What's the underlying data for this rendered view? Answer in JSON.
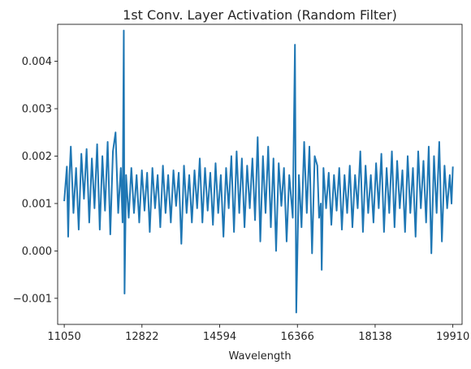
{
  "chart_data": {
    "type": "line",
    "title": "1st Conv. Layer Activation (Random Filter)",
    "xlabel": "Wavelength",
    "ylabel": "",
    "xlim": [
      10900,
      20120
    ],
    "ylim": [
      -0.00155,
      0.00478
    ],
    "x_ticks": [
      11050,
      12822,
      14594,
      16366,
      18138,
      19910
    ],
    "y_ticks": [
      -0.001,
      0.0,
      0.001,
      0.002,
      0.003,
      0.004
    ],
    "y_tick_labels": [
      "−0.001",
      "0.000",
      "0.001",
      "0.002",
      "0.003",
      "0.004"
    ],
    "grid": false,
    "series": [
      {
        "color": "#1f77b4",
        "x_start": 11050,
        "x_end": 19910,
        "points": [
          [
            11050,
            0.00105
          ],
          [
            11110,
            0.00178
          ],
          [
            11140,
            0.0003
          ],
          [
            11170,
            0.0016
          ],
          [
            11200,
            0.0022
          ],
          [
            11260,
            0.0008
          ],
          [
            11320,
            0.00175
          ],
          [
            11380,
            0.00045
          ],
          [
            11440,
            0.00205
          ],
          [
            11500,
            0.0011
          ],
          [
            11560,
            0.00215
          ],
          [
            11620,
            0.0006
          ],
          [
            11680,
            0.00195
          ],
          [
            11740,
            0.0009
          ],
          [
            11800,
            0.00225
          ],
          [
            11860,
            0.00045
          ],
          [
            11920,
            0.002
          ],
          [
            11980,
            0.00085
          ],
          [
            12040,
            0.0023
          ],
          [
            12100,
            0.00035
          ],
          [
            12160,
            0.0021
          ],
          [
            12220,
            0.0025
          ],
          [
            12280,
            0.0008
          ],
          [
            12340,
            0.00175
          ],
          [
            12380,
            0.0006
          ],
          [
            12408,
            0.00465
          ],
          [
            12425,
            -0.0009
          ],
          [
            12460,
            0.0016
          ],
          [
            12520,
            0.0007
          ],
          [
            12580,
            0.00175
          ],
          [
            12640,
            0.0008
          ],
          [
            12700,
            0.0016
          ],
          [
            12760,
            0.0006
          ],
          [
            12820,
            0.0017
          ],
          [
            12880,
            0.00085
          ],
          [
            12940,
            0.00165
          ],
          [
            13000,
            0.0004
          ],
          [
            13060,
            0.00175
          ],
          [
            13120,
            0.0009
          ],
          [
            13180,
            0.0016
          ],
          [
            13240,
            0.0005
          ],
          [
            13300,
            0.0018
          ],
          [
            13360,
            0.0008
          ],
          [
            13420,
            0.0016
          ],
          [
            13480,
            0.0006
          ],
          [
            13540,
            0.0017
          ],
          [
            13600,
            0.00095
          ],
          [
            13660,
            0.00165
          ],
          [
            13720,
            0.00015
          ],
          [
            13780,
            0.0018
          ],
          [
            13840,
            0.0008
          ],
          [
            13900,
            0.0016
          ],
          [
            13960,
            0.0006
          ],
          [
            14020,
            0.0017
          ],
          [
            14080,
            0.0009
          ],
          [
            14140,
            0.00195
          ],
          [
            14200,
            0.0006
          ],
          [
            14260,
            0.00175
          ],
          [
            14320,
            0.00085
          ],
          [
            14380,
            0.00165
          ],
          [
            14440,
            0.00055
          ],
          [
            14500,
            0.00185
          ],
          [
            14560,
            0.0008
          ],
          [
            14620,
            0.0016
          ],
          [
            14680,
            0.0003
          ],
          [
            14740,
            0.00175
          ],
          [
            14800,
            0.0009
          ],
          [
            14860,
            0.002
          ],
          [
            14920,
            0.0004
          ],
          [
            14980,
            0.0021
          ],
          [
            15040,
            0.0008
          ],
          [
            15100,
            0.00195
          ],
          [
            15160,
            0.0005
          ],
          [
            15220,
            0.0018
          ],
          [
            15280,
            0.0009
          ],
          [
            15340,
            0.00195
          ],
          [
            15400,
            0.00065
          ],
          [
            15460,
            0.0024
          ],
          [
            15520,
            0.0002
          ],
          [
            15580,
            0.002
          ],
          [
            15640,
            0.0008
          ],
          [
            15700,
            0.0022
          ],
          [
            15760,
            0.0005
          ],
          [
            15820,
            0.00195
          ],
          [
            15880,
            0.0
          ],
          [
            15940,
            0.00185
          ],
          [
            16000,
            0.00095
          ],
          [
            16060,
            0.00175
          ],
          [
            16120,
            0.0002
          ],
          [
            16180,
            0.0016
          ],
          [
            16260,
            0.0007
          ],
          [
            16310,
            0.00435
          ],
          [
            16340,
            -0.0013
          ],
          [
            16400,
            0.0016
          ],
          [
            16460,
            0.0005
          ],
          [
            16520,
            0.0023
          ],
          [
            16580,
            0.0008
          ],
          [
            16640,
            0.0022
          ],
          [
            16700,
            -5e-05
          ],
          [
            16760,
            0.002
          ],
          [
            16820,
            0.0018
          ],
          [
            16860,
            0.0007
          ],
          [
            16900,
            0.001
          ],
          [
            16920,
            -0.0004
          ],
          [
            16960,
            0.00175
          ],
          [
            17020,
            0.0009
          ],
          [
            17080,
            0.00165
          ],
          [
            17140,
            0.00055
          ],
          [
            17200,
            0.0016
          ],
          [
            17260,
            0.00085
          ],
          [
            17320,
            0.00175
          ],
          [
            17380,
            0.00045
          ],
          [
            17440,
            0.0016
          ],
          [
            17500,
            0.0008
          ],
          [
            17560,
            0.0018
          ],
          [
            17620,
            0.0005
          ],
          [
            17680,
            0.0016
          ],
          [
            17740,
            0.0009
          ],
          [
            17800,
            0.0021
          ],
          [
            17860,
            0.0004
          ],
          [
            17920,
            0.0018
          ],
          [
            17980,
            0.0008
          ],
          [
            18040,
            0.0016
          ],
          [
            18100,
            0.0006
          ],
          [
            18160,
            0.00185
          ],
          [
            18220,
            0.0009
          ],
          [
            18280,
            0.00205
          ],
          [
            18340,
            0.0004
          ],
          [
            18400,
            0.00175
          ],
          [
            18460,
            0.0008
          ],
          [
            18520,
            0.0021
          ],
          [
            18580,
            0.0005
          ],
          [
            18640,
            0.0019
          ],
          [
            18700,
            0.0009
          ],
          [
            18760,
            0.0017
          ],
          [
            18820,
            0.0004
          ],
          [
            18880,
            0.002
          ],
          [
            18940,
            0.0008
          ],
          [
            19000,
            0.00175
          ],
          [
            19060,
            0.0003
          ],
          [
            19120,
            0.0021
          ],
          [
            19180,
            0.0009
          ],
          [
            19240,
            0.0019
          ],
          [
            19300,
            0.0006
          ],
          [
            19360,
            0.0022
          ],
          [
            19420,
            -5e-05
          ],
          [
            19480,
            0.002
          ],
          [
            19540,
            0.0008
          ],
          [
            19600,
            0.0023
          ],
          [
            19660,
            0.0002
          ],
          [
            19720,
            0.0018
          ],
          [
            19780,
            0.0009
          ],
          [
            19840,
            0.0016
          ],
          [
            19880,
            0.001
          ],
          [
            19910,
            0.00178
          ]
        ]
      }
    ]
  }
}
